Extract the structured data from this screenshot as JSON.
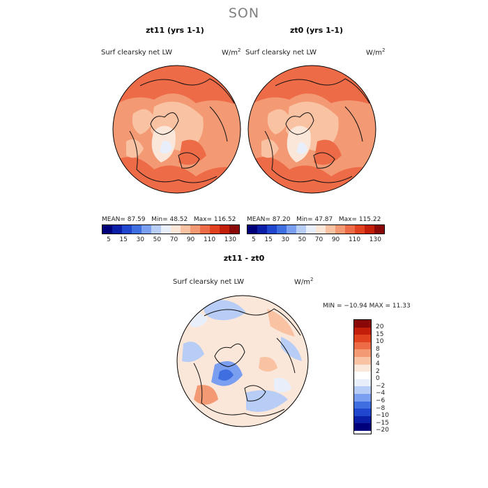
{
  "figure": {
    "season": "SON"
  },
  "chart_data": [
    {
      "type": "heatmap",
      "title": "zt11 (yrs 1-1)",
      "field_label": "Surf clearsky net LW",
      "units": "W/m",
      "units_sup": "2",
      "stats": {
        "mean": "MEAN=   87.59",
        "min": "Min=   48.52",
        "max": "Max=  116.52"
      },
      "stats_values": {
        "mean": 87.59,
        "min": 48.52,
        "max": 116.52
      },
      "colorbar": {
        "orientation": "horizontal",
        "colors": [
          "#00007a",
          "#0a1fa6",
          "#1f46cc",
          "#3f6ee0",
          "#7a9ef0",
          "#b7cdf5",
          "#e8effa",
          "#fbe7d9",
          "#f8c2a3",
          "#f39a74",
          "#ee6b48",
          "#e0411e",
          "#c21e0a",
          "#8a0808"
        ],
        "tick_labels": [
          "5",
          "15",
          "30",
          "50",
          "70",
          "90",
          "110",
          "130"
        ],
        "levels": [
          5,
          15,
          30,
          50,
          70,
          90,
          110,
          130
        ]
      }
    },
    {
      "type": "heatmap",
      "title": "zt0 (yrs 1-1)",
      "field_label": "Surf clearsky net LW",
      "units": "W/m",
      "units_sup": "2",
      "stats": {
        "mean": "MEAN=   87.20",
        "min": "Min=   47.87",
        "max": "Max=  115.22"
      },
      "stats_values": {
        "mean": 87.2,
        "min": 47.87,
        "max": 115.22
      },
      "colorbar": {
        "orientation": "horizontal",
        "colors": [
          "#00007a",
          "#0a1fa6",
          "#1f46cc",
          "#3f6ee0",
          "#7a9ef0",
          "#b7cdf5",
          "#e8effa",
          "#fbe7d9",
          "#f8c2a3",
          "#f39a74",
          "#ee6b48",
          "#e0411e",
          "#c21e0a",
          "#8a0808"
        ],
        "tick_labels": [
          "5",
          "15",
          "30",
          "50",
          "70",
          "90",
          "110",
          "130"
        ],
        "levels": [
          5,
          15,
          30,
          50,
          70,
          90,
          110,
          130
        ]
      }
    },
    {
      "type": "heatmap",
      "title": "zt11 - zt0",
      "field_label": "Surf clearsky net LW",
      "units": "W/m",
      "units_sup": "2",
      "stats": {
        "minmax": "MIN = −10.94  MAX =   11.33"
      },
      "stats_values": {
        "min": -10.94,
        "max": 11.33
      },
      "colorbar": {
        "orientation": "vertical",
        "colors_top_to_bottom": [
          "#8a0808",
          "#c21e0a",
          "#e0411e",
          "#ee6b48",
          "#f39a74",
          "#f8c2a3",
          "#fbe7d9",
          "#ffffff",
          "#e8effa",
          "#b7cdf5",
          "#7a9ef0",
          "#3f6ee0",
          "#1f46cc",
          "#0a1fa6",
          "#00007a"
        ],
        "tick_labels": [
          "20",
          "15",
          "10",
          "8",
          "6",
          "4",
          "2",
          "0",
          "−2",
          "−4",
          "−6",
          "−8",
          "−10",
          "−15",
          "−20"
        ],
        "levels": [
          20,
          15,
          10,
          8,
          6,
          4,
          2,
          0,
          -2,
          -4,
          -6,
          -8,
          -10,
          -15,
          -20
        ]
      }
    }
  ]
}
